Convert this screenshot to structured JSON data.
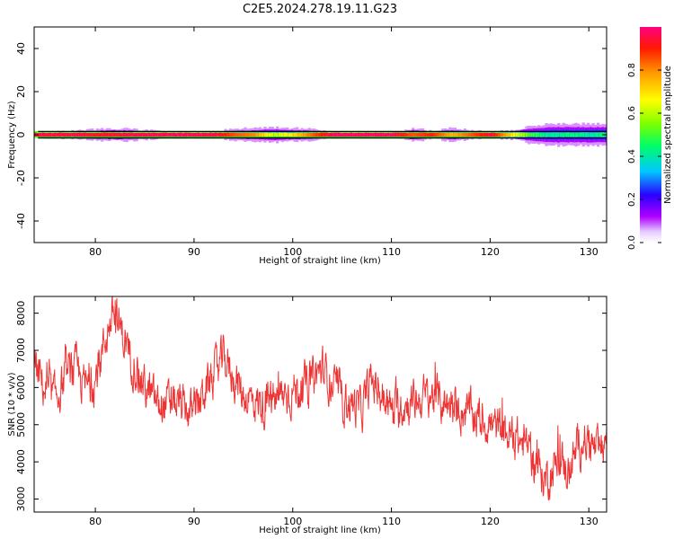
{
  "title": "C2E5.2024.278.19.11.G23",
  "colors": {
    "snr_line": "#ee3333",
    "axis": "#000000",
    "background": "#ffffff",
    "frame_line": "#000000",
    "center_line": "#00dd00"
  },
  "chart_data": [
    {
      "name": "spectrogram",
      "type": "heatmap",
      "xlabel": "Height of straight line (km)",
      "ylabel": "Frequency (Hz)",
      "xlim": [
        73.8,
        131.8
      ],
      "ylim": [
        -50,
        50
      ],
      "x_ticks": [
        80,
        90,
        100,
        110,
        120,
        130
      ],
      "y_ticks": [
        -40,
        -20,
        0,
        20,
        40
      ],
      "band_center_hz": 0,
      "band_halfwidth_hz": 1.5,
      "spread_profile": [
        {
          "x": 74,
          "spread": 0.6,
          "amp": 0.95
        },
        {
          "x": 78,
          "spread": 2.0,
          "amp": 0.95
        },
        {
          "x": 80,
          "spread": 2.5,
          "amp": 0.92
        },
        {
          "x": 82,
          "spread": 3.0,
          "amp": 0.93
        },
        {
          "x": 84,
          "spread": 2.5,
          "amp": 0.95
        },
        {
          "x": 86,
          "spread": 1.8,
          "amp": 0.96
        },
        {
          "x": 88,
          "spread": 1.0,
          "amp": 0.97
        },
        {
          "x": 92,
          "spread": 1.5,
          "amp": 0.95
        },
        {
          "x": 94,
          "spread": 2.5,
          "amp": 0.85
        },
        {
          "x": 96,
          "spread": 3.0,
          "amp": 0.8
        },
        {
          "x": 98,
          "spread": 3.5,
          "amp": 0.6
        },
        {
          "x": 100,
          "spread": 3.0,
          "amp": 0.7
        },
        {
          "x": 102,
          "spread": 2.5,
          "amp": 0.85
        },
        {
          "x": 104,
          "spread": 1.0,
          "amp": 0.97
        },
        {
          "x": 110,
          "spread": 1.0,
          "amp": 0.97
        },
        {
          "x": 112,
          "spread": 3.0,
          "amp": 0.85
        },
        {
          "x": 114,
          "spread": 2.0,
          "amp": 0.9
        },
        {
          "x": 116,
          "spread": 3.0,
          "amp": 0.75
        },
        {
          "x": 118,
          "spread": 2.0,
          "amp": 0.85
        },
        {
          "x": 120,
          "spread": 1.0,
          "amp": 0.95
        },
        {
          "x": 122,
          "spread": 2.0,
          "amp": 0.7
        },
        {
          "x": 124,
          "spread": 4.0,
          "amp": 0.5
        },
        {
          "x": 126,
          "spread": 5.0,
          "amp": 0.4
        },
        {
          "x": 128,
          "spread": 5.0,
          "amp": 0.45
        },
        {
          "x": 130,
          "spread": 5.0,
          "amp": 0.4
        },
        {
          "x": 131.8,
          "spread": 5.0,
          "amp": 0.45
        }
      ]
    },
    {
      "name": "colorbar",
      "type": "heatmap",
      "label": "Normalized spectral amplitude",
      "range": [
        0,
        1
      ],
      "ticks": [
        "0.0",
        "0.2",
        "0.4",
        "0.6",
        "0.8"
      ],
      "tick_values": [
        0,
        0.2,
        0.4,
        0.6,
        0.8
      ]
    },
    {
      "name": "snr",
      "type": "line",
      "xlabel": "Height of straight line (km)",
      "ylabel": "SNR (10 * v/v)",
      "xlim": [
        73.8,
        131.8
      ],
      "ylim": [
        2650,
        8450
      ],
      "x_ticks": [
        80,
        90,
        100,
        110,
        120,
        130
      ],
      "y_ticks": [
        3000,
        4000,
        5000,
        6000,
        7000,
        8000
      ],
      "trend": [
        {
          "x": 73.8,
          "y": 6600
        },
        {
          "x": 75,
          "y": 5900
        },
        {
          "x": 76,
          "y": 5700
        },
        {
          "x": 77,
          "y": 6300
        },
        {
          "x": 78,
          "y": 6500
        },
        {
          "x": 79,
          "y": 6000
        },
        {
          "x": 80,
          "y": 6200
        },
        {
          "x": 81,
          "y": 7300
        },
        {
          "x": 81.8,
          "y": 8000
        },
        {
          "x": 82.5,
          "y": 7600
        },
        {
          "x": 83.5,
          "y": 6900
        },
        {
          "x": 85,
          "y": 6000
        },
        {
          "x": 86.5,
          "y": 5500
        },
        {
          "x": 88,
          "y": 5600
        },
        {
          "x": 90,
          "y": 5300
        },
        {
          "x": 91,
          "y": 5900
        },
        {
          "x": 93,
          "y": 6800
        },
        {
          "x": 95,
          "y": 5800
        },
        {
          "x": 97,
          "y": 5500
        },
        {
          "x": 99,
          "y": 5800
        },
        {
          "x": 101,
          "y": 6000
        },
        {
          "x": 103,
          "y": 6500
        },
        {
          "x": 105,
          "y": 5700
        },
        {
          "x": 107,
          "y": 5400
        },
        {
          "x": 108,
          "y": 6200
        },
        {
          "x": 110,
          "y": 5400
        },
        {
          "x": 112,
          "y": 5600
        },
        {
          "x": 114,
          "y": 5800
        },
        {
          "x": 116,
          "y": 5500
        },
        {
          "x": 118,
          "y": 5300
        },
        {
          "x": 120,
          "y": 5000
        },
        {
          "x": 122,
          "y": 4700
        },
        {
          "x": 124,
          "y": 4400
        },
        {
          "x": 125.5,
          "y": 3500
        },
        {
          "x": 127,
          "y": 4000
        },
        {
          "x": 128,
          "y": 3800
        },
        {
          "x": 129.5,
          "y": 4700
        },
        {
          "x": 131,
          "y": 4200
        },
        {
          "x": 131.8,
          "y": 4700
        }
      ],
      "noise_amplitude": 450,
      "num_samples": 1400
    }
  ]
}
